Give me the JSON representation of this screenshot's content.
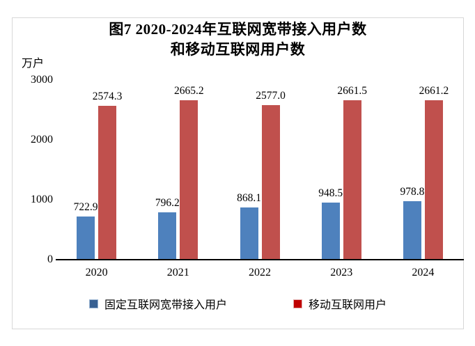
{
  "chart": {
    "title_line1": "图7 2020-2024年互联网宽带接入用户数",
    "title_line2": "和移动互联网用户数",
    "unit_label": "万户"
  },
  "chart_data": {
    "type": "bar",
    "title": "图7 2020-2024年互联网宽带接入用户数和移动互联网用户数",
    "unit": "万户",
    "categories": [
      "2020",
      "2021",
      "2022",
      "2023",
      "2024"
    ],
    "series": [
      {
        "name": "固定互联网宽带接入用户",
        "color": "#4E81BD",
        "values": [
          722.9,
          796.2,
          868.1,
          948.5,
          978.8
        ]
      },
      {
        "name": "移动互联网用户",
        "color": "#C0504D",
        "values": [
          2574.3,
          2665.2,
          2577.0,
          2661.5,
          2661.2
        ]
      }
    ],
    "ylim": [
      0,
      3000
    ],
    "y_ticks": [
      0,
      1000,
      2000,
      3000
    ],
    "grid": false,
    "data_labels": true,
    "legend_position": "bottom"
  },
  "legend": {
    "items": [
      {
        "label": "固定互联网宽带接入用户",
        "marker_color": "#376092",
        "marker_border": "#9cb6d4"
      },
      {
        "label": "移动互联网用户",
        "marker_color": "#C00000",
        "marker_border": "#e2aead"
      }
    ]
  }
}
